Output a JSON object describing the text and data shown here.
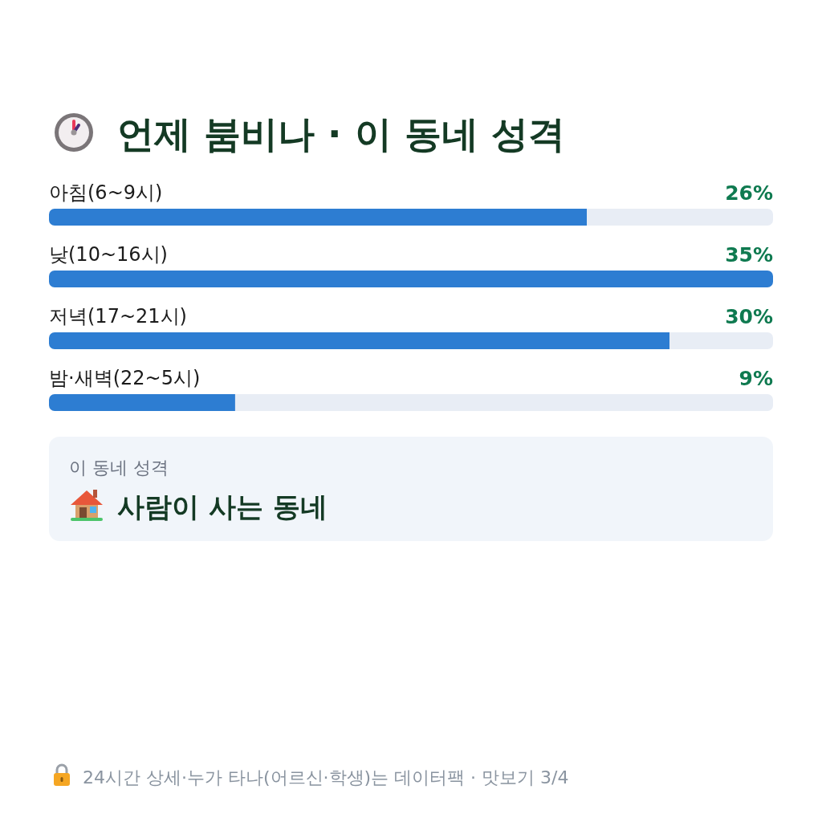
{
  "chart_data": {
    "type": "bar",
    "orientation": "horizontal",
    "title": "언제 붐비나 · 이 동네 성격",
    "categories": [
      "아침(6~9시)",
      "낮(10~16시)",
      "저녁(17~21시)",
      "밤·새벽(22~5시)"
    ],
    "values": [
      26,
      35,
      30,
      9
    ],
    "value_labels": [
      "26%",
      "35%",
      "30%",
      "9%"
    ],
    "color": "#2d7dd2",
    "annotations": [
      "이 동네 성격",
      "사람이 사는 동네",
      "24시간 상세·누가 타나(어르신·학생)는 데이터팩 · 맛보기 3/4"
    ]
  }
}
